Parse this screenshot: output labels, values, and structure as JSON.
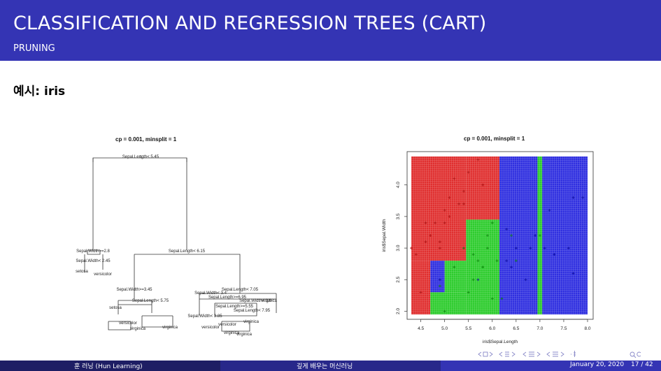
{
  "header": {
    "title": "CLASSIFICATION AND REGRESSION TREES (CART)",
    "subtitle": "PRUNING"
  },
  "slide": {
    "heading": "예시: iris"
  },
  "tree_plot": {
    "title": "cp = 0.001, minsplit = 1",
    "split_labels": [
      "Sepal.Length< 5.45",
      "Sepal.Width>=2.8",
      "Sepal.Length< 6.15",
      "Sepal.Width>=3.45",
      "Sepal.Width< 3.4",
      "Sepal.Length< 7.05",
      "Sepal.Length>=6.95",
      "Sepal.Width< 3.9",
      "Sepal.Length< 5.75",
      "Sepal.Length>=5.55",
      "Sepal.Width< 2.45",
      "Sepal.Length< 7.95",
      "Sepal.Width< 3.85"
    ],
    "leaf_labels": [
      "setosa",
      "versicolor",
      "virginica",
      "setosa",
      "virginica",
      "versicolor",
      "virginica",
      "versicolor",
      "virginica",
      "virginica",
      "versicolor",
      "virginica"
    ]
  },
  "chart_data": {
    "type": "scatter",
    "title": "cp = 0.001, minsplit = 1",
    "xlabel": "iris$Sepal.Length",
    "ylabel": "iris$Sepal.Width",
    "xlim": [
      4.3,
      8.0
    ],
    "ylim": [
      1.95,
      4.45
    ],
    "xticks": [
      4.5,
      5.0,
      5.5,
      6.0,
      6.5,
      7.0,
      7.5,
      8.0
    ],
    "yticks": [
      2.0,
      2.5,
      3.0,
      3.5,
      4.0
    ],
    "grid": false,
    "classes": [
      {
        "name": "setosa",
        "color": "#e03030"
      },
      {
        "name": "versicolor",
        "color": "#2ecc2e"
      },
      {
        "name": "virginica",
        "color": "#3030e0"
      }
    ],
    "regions": [
      {
        "class": "setosa",
        "x": [
          4.3,
          5.45
        ],
        "y": [
          2.8,
          4.45
        ]
      },
      {
        "class": "setosa",
        "x": [
          4.3,
          4.7
        ],
        "y": [
          1.95,
          2.8
        ]
      },
      {
        "class": "virginica",
        "x": [
          4.7,
          5.0
        ],
        "y": [
          2.3,
          2.8
        ]
      },
      {
        "class": "versicolor",
        "x": [
          4.7,
          5.45
        ],
        "y": [
          1.95,
          2.3
        ]
      },
      {
        "class": "versicolor",
        "x": [
          5.0,
          5.45
        ],
        "y": [
          2.3,
          2.8
        ]
      },
      {
        "class": "setosa",
        "x": [
          5.45,
          6.15
        ],
        "y": [
          3.45,
          4.45
        ]
      },
      {
        "class": "versicolor",
        "x": [
          5.45,
          6.15
        ],
        "y": [
          1.95,
          3.45
        ]
      },
      {
        "class": "virginica",
        "x": [
          6.15,
          7.05
        ],
        "y": [
          1.95,
          4.45
        ]
      },
      {
        "class": "versicolor",
        "x": [
          6.95,
          7.05
        ],
        "y": [
          1.95,
          4.45
        ]
      },
      {
        "class": "virginica",
        "x": [
          7.05,
          8.0
        ],
        "y": [
          1.95,
          4.45
        ]
      }
    ],
    "points": [
      {
        "class": "setosa",
        "x": 5.1,
        "y": 3.5
      },
      {
        "class": "setosa",
        "x": 4.9,
        "y": 3.0
      },
      {
        "class": "setosa",
        "x": 4.7,
        "y": 3.2
      },
      {
        "class": "setosa",
        "x": 4.6,
        "y": 3.1
      },
      {
        "class": "setosa",
        "x": 5.0,
        "y": 3.6
      },
      {
        "class": "setosa",
        "x": 5.4,
        "y": 3.9
      },
      {
        "class": "setosa",
        "x": 4.6,
        "y": 3.4
      },
      {
        "class": "setosa",
        "x": 5.0,
        "y": 3.4
      },
      {
        "class": "setosa",
        "x": 4.4,
        "y": 2.9
      },
      {
        "class": "setosa",
        "x": 4.9,
        "y": 3.1
      },
      {
        "class": "setosa",
        "x": 5.4,
        "y": 3.7
      },
      {
        "class": "setosa",
        "x": 4.8,
        "y": 3.4
      },
      {
        "class": "setosa",
        "x": 4.3,
        "y": 3.0
      },
      {
        "class": "setosa",
        "x": 5.8,
        "y": 4.0
      },
      {
        "class": "setosa",
        "x": 5.7,
        "y": 4.4
      },
      {
        "class": "setosa",
        "x": 5.1,
        "y": 3.8
      },
      {
        "class": "setosa",
        "x": 4.5,
        "y": 2.3
      },
      {
        "class": "setosa",
        "x": 5.2,
        "y": 4.1
      },
      {
        "class": "setosa",
        "x": 5.5,
        "y": 4.2
      },
      {
        "class": "setosa",
        "x": 5.3,
        "y": 3.7
      },
      {
        "class": "versicolor",
        "x": 7.0,
        "y": 3.2
      },
      {
        "class": "versicolor",
        "x": 6.4,
        "y": 3.2
      },
      {
        "class": "versicolor",
        "x": 5.5,
        "y": 2.3
      },
      {
        "class": "versicolor",
        "x": 6.5,
        "y": 2.8
      },
      {
        "class": "versicolor",
        "x": 5.7,
        "y": 2.8
      },
      {
        "class": "versicolor",
        "x": 4.9,
        "y": 2.4
      },
      {
        "class": "versicolor",
        "x": 5.2,
        "y": 2.7
      },
      {
        "class": "versicolor",
        "x": 5.0,
        "y": 2.0
      },
      {
        "class": "versicolor",
        "x": 5.9,
        "y": 3.0
      },
      {
        "class": "versicolor",
        "x": 6.0,
        "y": 2.2
      },
      {
        "class": "versicolor",
        "x": 5.6,
        "y": 2.9
      },
      {
        "class": "versicolor",
        "x": 5.8,
        "y": 2.7
      },
      {
        "class": "versicolor",
        "x": 6.2,
        "y": 2.2
      },
      {
        "class": "versicolor",
        "x": 5.6,
        "y": 2.5
      },
      {
        "class": "versicolor",
        "x": 5.9,
        "y": 3.2
      },
      {
        "class": "versicolor",
        "x": 6.1,
        "y": 2.8
      },
      {
        "class": "versicolor",
        "x": 5.4,
        "y": 3.0
      },
      {
        "class": "versicolor",
        "x": 6.0,
        "y": 3.4
      },
      {
        "class": "virginica",
        "x": 6.3,
        "y": 3.3
      },
      {
        "class": "virginica",
        "x": 7.1,
        "y": 3.0
      },
      {
        "class": "virginica",
        "x": 6.5,
        "y": 3.0
      },
      {
        "class": "virginica",
        "x": 7.6,
        "y": 3.0
      },
      {
        "class": "virginica",
        "x": 4.9,
        "y": 2.5
      },
      {
        "class": "virginica",
        "x": 7.3,
        "y": 2.9
      },
      {
        "class": "virginica",
        "x": 6.7,
        "y": 2.5
      },
      {
        "class": "virginica",
        "x": 7.2,
        "y": 3.6
      },
      {
        "class": "virginica",
        "x": 6.4,
        "y": 2.7
      },
      {
        "class": "virginica",
        "x": 6.8,
        "y": 3.0
      },
      {
        "class": "virginica",
        "x": 5.7,
        "y": 2.5
      },
      {
        "class": "virginica",
        "x": 7.7,
        "y": 3.8
      },
      {
        "class": "virginica",
        "x": 7.7,
        "y": 2.6
      },
      {
        "class": "virginica",
        "x": 6.9,
        "y": 3.2
      },
      {
        "class": "virginica",
        "x": 7.9,
        "y": 3.8
      },
      {
        "class": "virginica",
        "x": 6.3,
        "y": 2.8
      }
    ]
  },
  "footer": {
    "left": "훈 러닝 (Hun Learning)",
    "center": "깊게 배우는 머신러닝",
    "date": "January 20, 2020",
    "page": "17 / 42"
  },
  "nav": {
    "icons": [
      "frame-prev-icon",
      "frame-next-icon",
      "subsection-prev-icon",
      "subsection-next-icon",
      "section-prev-icon",
      "section-next-icon",
      "doc-icon",
      "find-icon"
    ]
  }
}
